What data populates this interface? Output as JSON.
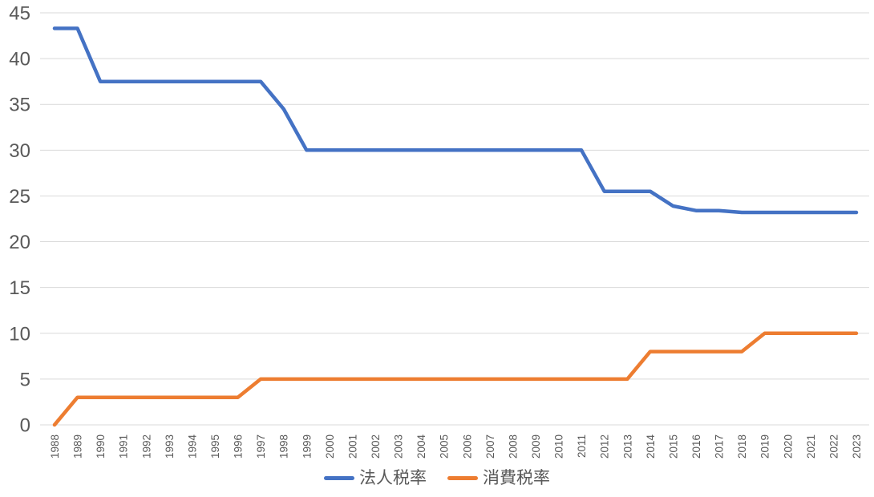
{
  "chart_data": {
    "type": "line",
    "title": "",
    "xlabel": "",
    "ylabel": "",
    "x": [
      1988,
      1989,
      1990,
      1991,
      1992,
      1993,
      1994,
      1995,
      1996,
      1997,
      1998,
      1999,
      2000,
      2001,
      2002,
      2003,
      2004,
      2005,
      2006,
      2007,
      2008,
      2009,
      2010,
      2011,
      2012,
      2013,
      2014,
      2015,
      2016,
      2017,
      2018,
      2019,
      2020,
      2021,
      2022,
      2023
    ],
    "series": [
      {
        "name": "法人税率",
        "color": "#4472C4",
        "values": [
          43.3,
          43.3,
          37.5,
          37.5,
          37.5,
          37.5,
          37.5,
          37.5,
          37.5,
          37.5,
          34.5,
          30,
          30,
          30,
          30,
          30,
          30,
          30,
          30,
          30,
          30,
          30,
          30,
          30,
          25.5,
          25.5,
          25.5,
          23.9,
          23.4,
          23.4,
          23.2,
          23.2,
          23.2,
          23.2,
          23.2,
          23.2
        ]
      },
      {
        "name": "消費税率",
        "color": "#ED7D31",
        "values": [
          0,
          3,
          3,
          3,
          3,
          3,
          3,
          3,
          3,
          5,
          5,
          5,
          5,
          5,
          5,
          5,
          5,
          5,
          5,
          5,
          5,
          5,
          5,
          5,
          5,
          5,
          8,
          8,
          8,
          8,
          8,
          10,
          10,
          10,
          10,
          10
        ]
      }
    ],
    "ylim": [
      0,
      45
    ],
    "yticks": [
      0,
      5,
      10,
      15,
      20,
      25,
      30,
      35,
      40,
      45
    ],
    "grid": true,
    "legend_position": "bottom",
    "colors": {
      "gridline": "#D9D9D9",
      "axis_text": "#595959",
      "background": "#FFFFFF"
    }
  }
}
